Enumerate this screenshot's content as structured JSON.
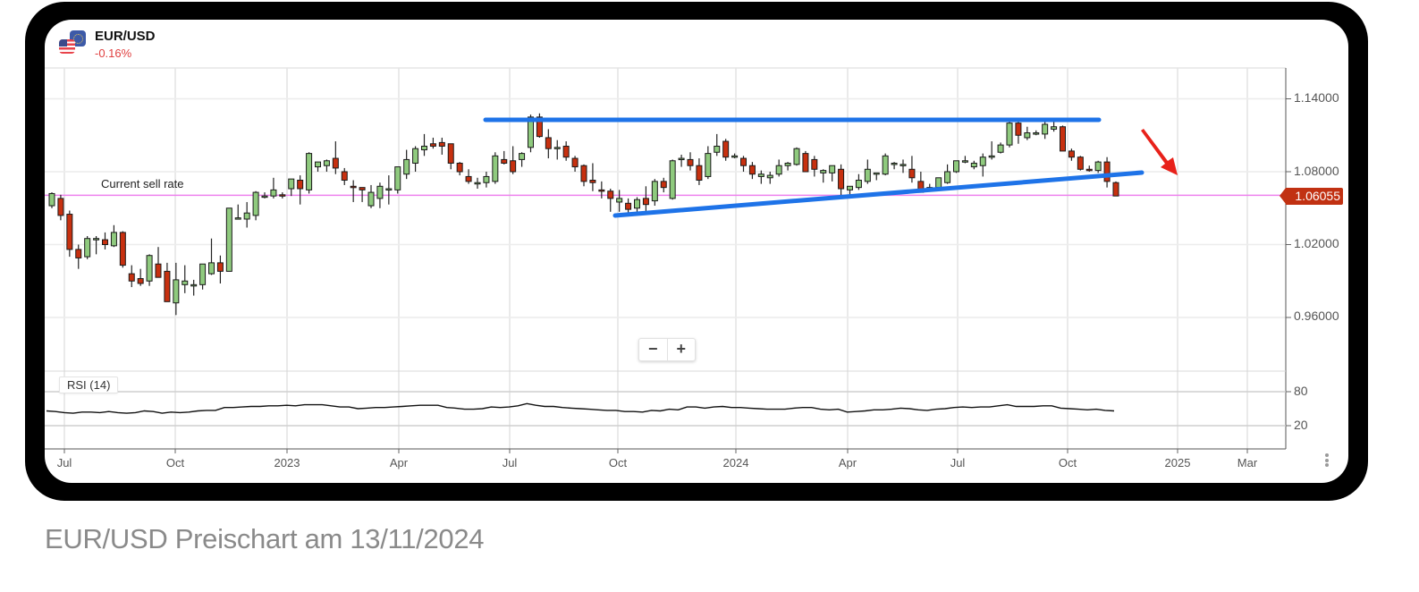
{
  "header": {
    "symbol": "EUR/USD",
    "change": "-0.16%",
    "icon": "eur-usd-flags-icon"
  },
  "caption": "EUR/USD Preischart am 13/11/2024",
  "controls": {
    "zoom_out": "−",
    "zoom_in": "+",
    "menu_icon": "vertical-dots-icon"
  },
  "annotations": {
    "sell_rate_label": "Current sell rate",
    "current_price": "1.06055"
  },
  "colors": {
    "bull": "#8fca7e",
    "bear": "#c7300f",
    "trendline": "#1e73e8",
    "price_line": "#ee82ee",
    "arrow": "#e8211a",
    "price_tag": "#c13112",
    "change_negative": "#e04040"
  },
  "y_axis": {
    "ticks": [
      "1.14000",
      "1.08000",
      "1.02000",
      "0.96000"
    ]
  },
  "rsi": {
    "label": "RSI (14)",
    "ticks": [
      "80",
      "20"
    ]
  },
  "x_axis": {
    "ticks": [
      "Jul",
      "Oct",
      "2023",
      "Apr",
      "Jul",
      "Oct",
      "2024",
      "Apr",
      "Jul",
      "Oct",
      "2025",
      "Mar"
    ]
  },
  "chart_data": {
    "type": "candlestick",
    "title": "EUR/USD",
    "subtitle": "-0.16%",
    "interval": "weekly (approx.)",
    "x_range": [
      "2022-06",
      "2025-03"
    ],
    "ylim": [
      0.92,
      1.165
    ],
    "grid": true,
    "y_ticks": [
      0.96,
      1.02,
      1.08,
      1.14
    ],
    "x_ticks": [
      "Jul",
      "Oct",
      "2023",
      "Apr",
      "Jul",
      "Oct",
      "2024",
      "Apr",
      "Jul",
      "Oct",
      "2025",
      "Mar"
    ],
    "current_price": 1.06055,
    "candles_ohlc": [
      [
        1.052,
        1.063,
        1.05,
        1.062
      ],
      [
        1.058,
        1.061,
        1.04,
        1.044
      ],
      [
        1.045,
        1.048,
        1.01,
        1.016
      ],
      [
        1.016,
        1.02,
        1.0,
        1.009
      ],
      [
        1.01,
        1.027,
        1.008,
        1.025
      ],
      [
        1.025,
        1.027,
        1.012,
        1.025
      ],
      [
        1.024,
        1.03,
        1.016,
        1.02
      ],
      [
        1.019,
        1.036,
        1.018,
        1.03
      ],
      [
        1.03,
        1.031,
        1.001,
        1.003
      ],
      [
        0.996,
        1.003,
        0.985,
        0.99
      ],
      [
        0.992,
        1.0,
        0.986,
        0.988
      ],
      [
        0.99,
        1.012,
        0.986,
        1.011
      ],
      [
        1.004,
        1.018,
        0.997,
        0.993
      ],
      [
        0.998,
        1.005,
        0.973,
        0.973
      ],
      [
        0.972,
        1.005,
        0.962,
        0.991
      ],
      [
        0.987,
        1.003,
        0.98,
        0.99
      ],
      [
        0.986,
        0.991,
        0.978,
        0.987
      ],
      [
        0.987,
        1.002,
        0.983,
        1.004
      ],
      [
        0.996,
        1.025,
        0.995,
        1.005
      ],
      [
        1.005,
        1.011,
        0.988,
        0.998
      ],
      [
        0.998,
        1.05,
        0.998,
        1.05
      ],
      [
        1.042,
        1.053,
        1.041,
        1.042
      ],
      [
        1.041,
        1.055,
        1.034,
        1.046
      ],
      [
        1.044,
        1.064,
        1.04,
        1.063
      ],
      [
        1.06,
        1.063,
        1.058,
        1.06
      ],
      [
        1.06,
        1.075,
        1.058,
        1.065
      ],
      [
        1.061,
        1.063,
        1.058,
        1.06
      ],
      [
        1.066,
        1.073,
        1.06,
        1.074
      ],
      [
        1.073,
        1.077,
        1.053,
        1.066
      ],
      [
        1.065,
        1.096,
        1.062,
        1.095
      ],
      [
        1.084,
        1.088,
        1.08,
        1.088
      ],
      [
        1.085,
        1.09,
        1.08,
        1.089
      ],
      [
        1.091,
        1.105,
        1.078,
        1.083
      ],
      [
        1.08,
        1.083,
        1.069,
        1.073
      ],
      [
        1.068,
        1.073,
        1.055,
        1.067
      ],
      [
        1.067,
        1.066,
        1.055,
        1.065
      ],
      [
        1.052,
        1.069,
        1.05,
        1.063
      ],
      [
        1.058,
        1.071,
        1.05,
        1.068
      ],
      [
        1.066,
        1.077,
        1.053,
        1.066
      ],
      [
        1.065,
        1.08,
        1.062,
        1.084
      ],
      [
        1.078,
        1.098,
        1.074,
        1.09
      ],
      [
        1.087,
        1.101,
        1.08,
        1.099
      ],
      [
        1.098,
        1.111,
        1.093,
        1.101
      ],
      [
        1.103,
        1.108,
        1.099,
        1.101
      ],
      [
        1.104,
        1.108,
        1.094,
        1.101
      ],
      [
        1.103,
        1.102,
        1.082,
        1.087
      ],
      [
        1.087,
        1.088,
        1.077,
        1.08
      ],
      [
        1.076,
        1.082,
        1.07,
        1.072
      ],
      [
        1.071,
        1.075,
        1.066,
        1.071
      ],
      [
        1.071,
        1.08,
        1.067,
        1.076
      ],
      [
        1.072,
        1.096,
        1.07,
        1.093
      ],
      [
        1.09,
        1.097,
        1.086,
        1.087
      ],
      [
        1.089,
        1.101,
        1.078,
        1.08
      ],
      [
        1.09,
        1.096,
        1.084,
        1.095
      ],
      [
        1.1,
        1.127,
        1.096,
        1.125
      ],
      [
        1.125,
        1.128,
        1.108,
        1.109
      ],
      [
        1.108,
        1.115,
        1.091,
        1.099
      ],
      [
        1.1,
        1.106,
        1.09,
        1.1
      ],
      [
        1.101,
        1.105,
        1.089,
        1.092
      ],
      [
        1.091,
        1.093,
        1.08,
        1.084
      ],
      [
        1.085,
        1.086,
        1.068,
        1.072
      ],
      [
        1.073,
        1.087,
        1.064,
        1.071
      ],
      [
        1.065,
        1.072,
        1.058,
        1.064
      ],
      [
        1.064,
        1.066,
        1.047,
        1.058
      ],
      [
        1.055,
        1.065,
        1.047,
        1.058
      ],
      [
        1.054,
        1.058,
        1.044,
        1.049
      ],
      [
        1.05,
        1.059,
        1.047,
        1.057
      ],
      [
        1.058,
        1.068,
        1.047,
        1.053
      ],
      [
        1.056,
        1.074,
        1.052,
        1.072
      ],
      [
        1.072,
        1.075,
        1.063,
        1.067
      ],
      [
        1.058,
        1.09,
        1.057,
        1.089
      ],
      [
        1.09,
        1.094,
        1.084,
        1.091
      ],
      [
        1.09,
        1.096,
        1.081,
        1.085
      ],
      [
        1.085,
        1.091,
        1.069,
        1.073
      ],
      [
        1.076,
        1.101,
        1.074,
        1.095
      ],
      [
        1.096,
        1.111,
        1.093,
        1.101
      ],
      [
        1.105,
        1.107,
        1.089,
        1.092
      ],
      [
        1.093,
        1.095,
        1.091,
        1.093
      ],
      [
        1.091,
        1.093,
        1.08,
        1.085
      ],
      [
        1.085,
        1.088,
        1.074,
        1.078
      ],
      [
        1.076,
        1.081,
        1.07,
        1.078
      ],
      [
        1.075,
        1.08,
        1.07,
        1.077
      ],
      [
        1.078,
        1.09,
        1.076,
        1.085
      ],
      [
        1.085,
        1.088,
        1.081,
        1.087
      ],
      [
        1.086,
        1.1,
        1.085,
        1.099
      ],
      [
        1.095,
        1.097,
        1.08,
        1.08
      ],
      [
        1.09,
        1.093,
        1.076,
        1.082
      ],
      [
        1.079,
        1.082,
        1.071,
        1.081
      ],
      [
        1.079,
        1.085,
        1.072,
        1.085
      ],
      [
        1.082,
        1.086,
        1.058,
        1.066
      ],
      [
        1.065,
        1.068,
        1.061,
        1.068
      ],
      [
        1.067,
        1.078,
        1.065,
        1.073
      ],
      [
        1.072,
        1.09,
        1.07,
        1.082
      ],
      [
        1.078,
        1.079,
        1.073,
        1.079
      ],
      [
        1.078,
        1.095,
        1.077,
        1.093
      ],
      [
        1.086,
        1.088,
        1.082,
        1.087
      ],
      [
        1.085,
        1.09,
        1.079,
        1.086
      ],
      [
        1.082,
        1.093,
        1.071,
        1.075
      ],
      [
        1.072,
        1.08,
        1.066,
        1.063
      ],
      [
        1.067,
        1.07,
        1.064,
        1.066
      ],
      [
        1.067,
        1.075,
        1.066,
        1.075
      ],
      [
        1.071,
        1.086,
        1.07,
        1.08
      ],
      [
        1.08,
        1.088,
        1.079,
        1.089
      ],
      [
        1.089,
        1.093,
        1.087,
        1.089
      ],
      [
        1.084,
        1.089,
        1.082,
        1.087
      ],
      [
        1.085,
        1.095,
        1.076,
        1.092
      ],
      [
        1.092,
        1.105,
        1.09,
        1.093
      ],
      [
        1.096,
        1.104,
        1.095,
        1.102
      ],
      [
        1.102,
        1.124,
        1.1,
        1.12
      ],
      [
        1.12,
        1.123,
        1.103,
        1.11
      ],
      [
        1.108,
        1.117,
        1.106,
        1.112
      ],
      [
        1.112,
        1.114,
        1.11,
        1.112
      ],
      [
        1.111,
        1.121,
        1.107,
        1.119
      ],
      [
        1.115,
        1.123,
        1.113,
        1.117
      ],
      [
        1.117,
        1.118,
        1.097,
        1.097
      ],
      [
        1.097,
        1.099,
        1.089,
        1.092
      ],
      [
        1.092,
        1.093,
        1.081,
        1.082
      ],
      [
        1.082,
        1.085,
        1.08,
        1.081
      ],
      [
        1.081,
        1.089,
        1.079,
        1.088
      ],
      [
        1.088,
        1.092,
        1.067,
        1.072
      ],
      [
        1.071,
        1.072,
        1.06,
        1.06
      ]
    ],
    "trendlines": [
      {
        "name": "resistance",
        "points": [
          [
            "2023-06",
            1.1255
          ],
          [
            "2024-09",
            1.1255
          ]
        ]
      },
      {
        "name": "rising support",
        "points": [
          [
            "2023-10",
            1.0445
          ],
          [
            "2024-12",
            1.079
          ]
        ]
      }
    ],
    "horizontal_lines": [
      {
        "label": "Current sell rate",
        "value": 1.06055
      }
    ],
    "arrow_annotation": {
      "direction": "down-right",
      "position": "after last candle",
      "color": "red"
    },
    "rsi_series": {
      "name": "RSI (14)",
      "ylim": [
        0,
        100
      ],
      "levels": [
        80,
        20
      ],
      "values": [
        46,
        45,
        43,
        42,
        44,
        44,
        43,
        45,
        43,
        42,
        43,
        46,
        45,
        42,
        44,
        43,
        44,
        46,
        47,
        47,
        52,
        52,
        53,
        54,
        54,
        55,
        55,
        56,
        55,
        57,
        57,
        57,
        55,
        53,
        53,
        50,
        51,
        52,
        52,
        53,
        54,
        55,
        56,
        56,
        56,
        52,
        51,
        49,
        49,
        50,
        53,
        52,
        53,
        55,
        59,
        56,
        54,
        54,
        52,
        51,
        50,
        49,
        48,
        47,
        47,
        45,
        45,
        44,
        47,
        46,
        49,
        48,
        53,
        53,
        51,
        53,
        54,
        52,
        52,
        51,
        50,
        49,
        49,
        49,
        51,
        52,
        52,
        49,
        48,
        49,
        44,
        45,
        46,
        48,
        48,
        49,
        51,
        50,
        48,
        47,
        49,
        50,
        52,
        53,
        52,
        53,
        53,
        55,
        57,
        54,
        54,
        54,
        55,
        55,
        51,
        50,
        49,
        48,
        49,
        47,
        46
      ]
    }
  }
}
